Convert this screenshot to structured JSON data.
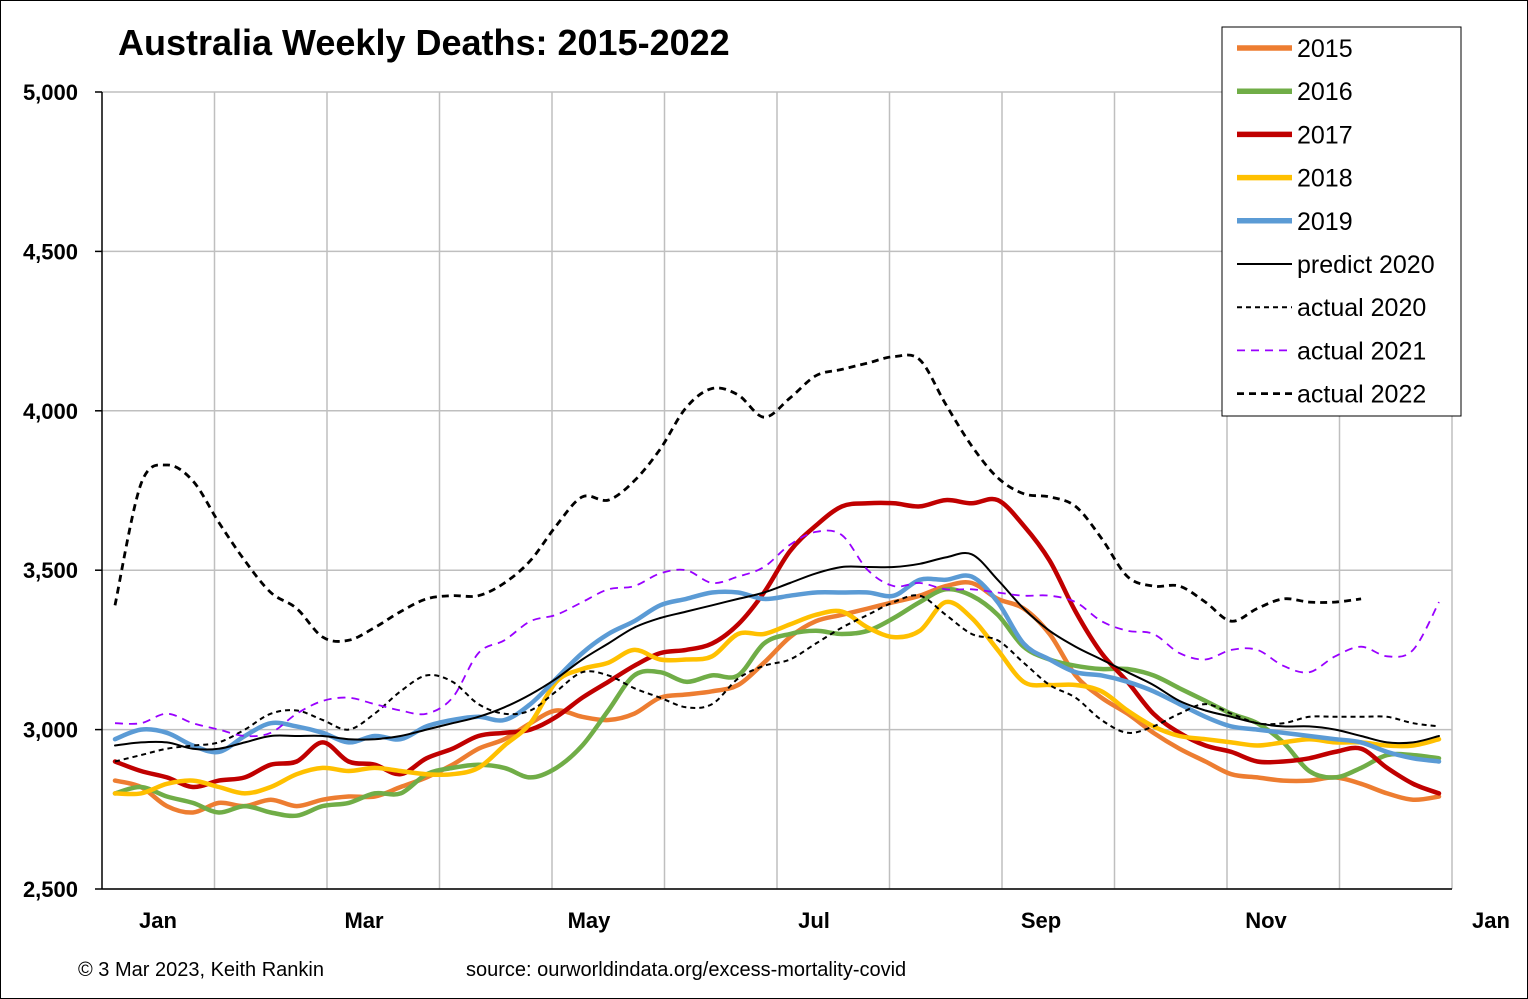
{
  "chart_data": {
    "type": "line",
    "title": "Australia Weekly Deaths: 2015-2022",
    "xlabel": "",
    "ylabel": "",
    "x_ticks": [
      "Jan",
      "Mar",
      "May",
      "Jul",
      "Sep",
      "Nov",
      "Jan"
    ],
    "y_ticks": [
      "2,500",
      "3,000",
      "3,500",
      "4,000",
      "4,500",
      "5,000"
    ],
    "ylim": [
      2500,
      5000
    ],
    "xlim": [
      0.5,
      52.5
    ],
    "grid": true,
    "legend_position": "top-right",
    "series": [
      {
        "name": "2015",
        "color": "#ED7D31",
        "style": "solid-thick",
        "x": [
          1,
          2,
          3,
          4,
          5,
          6,
          7,
          8,
          9,
          10,
          11,
          12,
          13,
          14,
          15,
          16,
          17,
          18,
          19,
          20,
          21,
          22,
          23,
          24,
          25,
          26,
          27,
          28,
          29,
          30,
          31,
          32,
          33,
          34,
          35,
          36,
          37,
          38,
          39,
          40,
          41,
          42,
          43,
          44,
          45,
          46,
          47,
          48,
          49,
          50,
          51,
          52
        ],
        "y": [
          2840,
          2820,
          2760,
          2740,
          2770,
          2760,
          2780,
          2760,
          2780,
          2790,
          2790,
          2820,
          2850,
          2890,
          2940,
          2970,
          3020,
          3060,
          3040,
          3030,
          3050,
          3100,
          3110,
          3120,
          3140,
          3210,
          3290,
          3340,
          3360,
          3380,
          3400,
          3420,
          3450,
          3460,
          3410,
          3380,
          3300,
          3170,
          3100,
          3050,
          2990,
          2940,
          2900,
          2860,
          2850,
          2840,
          2840,
          2850,
          2830,
          2800,
          2780,
          2790
        ]
      },
      {
        "name": "2016",
        "color": "#70AD47",
        "style": "solid-thick",
        "x": [
          1,
          2,
          3,
          4,
          5,
          6,
          7,
          8,
          9,
          10,
          11,
          12,
          13,
          14,
          15,
          16,
          17,
          18,
          19,
          20,
          21,
          22,
          23,
          24,
          25,
          26,
          27,
          28,
          29,
          30,
          31,
          32,
          33,
          34,
          35,
          36,
          37,
          38,
          39,
          40,
          41,
          42,
          43,
          44,
          45,
          46,
          47,
          48,
          49,
          50,
          51,
          52
        ],
        "y": [
          2800,
          2820,
          2790,
          2770,
          2740,
          2760,
          2740,
          2730,
          2760,
          2770,
          2800,
          2800,
          2860,
          2880,
          2890,
          2880,
          2850,
          2880,
          2950,
          3060,
          3170,
          3180,
          3150,
          3170,
          3170,
          3270,
          3300,
          3310,
          3300,
          3310,
          3350,
          3400,
          3440,
          3420,
          3360,
          3260,
          3220,
          3200,
          3190,
          3190,
          3170,
          3130,
          3090,
          3050,
          3020,
          2960,
          2870,
          2850,
          2880,
          2920,
          2920,
          2910
        ]
      },
      {
        "name": "2017",
        "color": "#C00000",
        "style": "solid-thick",
        "x": [
          1,
          2,
          3,
          4,
          5,
          6,
          7,
          8,
          9,
          10,
          11,
          12,
          13,
          14,
          15,
          16,
          17,
          18,
          19,
          20,
          21,
          22,
          23,
          24,
          25,
          26,
          27,
          28,
          29,
          30,
          31,
          32,
          33,
          34,
          35,
          36,
          37,
          38,
          39,
          40,
          41,
          42,
          43,
          44,
          45,
          46,
          47,
          48,
          49,
          50,
          51,
          52
        ],
        "y": [
          2900,
          2870,
          2850,
          2820,
          2840,
          2850,
          2890,
          2900,
          2960,
          2900,
          2890,
          2860,
          2910,
          2940,
          2980,
          2990,
          3000,
          3040,
          3100,
          3150,
          3200,
          3240,
          3250,
          3270,
          3330,
          3430,
          3560,
          3640,
          3700,
          3710,
          3710,
          3700,
          3720,
          3710,
          3720,
          3640,
          3530,
          3370,
          3240,
          3150,
          3050,
          2990,
          2950,
          2930,
          2900,
          2900,
          2910,
          2930,
          2940,
          2880,
          2830,
          2800
        ]
      },
      {
        "name": "2018",
        "color": "#FFC000",
        "style": "solid-thick",
        "x": [
          1,
          2,
          3,
          4,
          5,
          6,
          7,
          8,
          9,
          10,
          11,
          12,
          13,
          14,
          15,
          16,
          17,
          18,
          19,
          20,
          21,
          22,
          23,
          24,
          25,
          26,
          27,
          28,
          29,
          30,
          31,
          32,
          33,
          34,
          35,
          36,
          37,
          38,
          39,
          40,
          41,
          42,
          43,
          44,
          45,
          46,
          47,
          48,
          49,
          50,
          51,
          52
        ],
        "y": [
          2800,
          2800,
          2830,
          2840,
          2820,
          2800,
          2820,
          2860,
          2880,
          2870,
          2880,
          2870,
          2860,
          2860,
          2880,
          2950,
          3020,
          3150,
          3190,
          3210,
          3250,
          3220,
          3220,
          3230,
          3300,
          3300,
          3330,
          3360,
          3370,
          3320,
          3290,
          3310,
          3400,
          3350,
          3250,
          3150,
          3140,
          3140,
          3120,
          3060,
          3010,
          2980,
          2970,
          2960,
          2950,
          2960,
          2970,
          2960,
          2960,
          2950,
          2950,
          2970
        ]
      },
      {
        "name": "2019",
        "color": "#5B9BD5",
        "style": "solid-thick",
        "x": [
          1,
          2,
          3,
          4,
          5,
          6,
          7,
          8,
          9,
          10,
          11,
          12,
          13,
          14,
          15,
          16,
          17,
          18,
          19,
          20,
          21,
          22,
          23,
          24,
          25,
          26,
          27,
          28,
          29,
          30,
          31,
          32,
          33,
          34,
          35,
          36,
          37,
          38,
          39,
          40,
          41,
          42,
          43,
          44,
          45,
          46,
          47,
          48,
          49,
          50,
          51,
          52
        ],
        "y": [
          2970,
          3000,
          2990,
          2950,
          2930,
          2980,
          3020,
          3010,
          2990,
          2960,
          2980,
          2970,
          3010,
          3030,
          3040,
          3030,
          3080,
          3160,
          3240,
          3300,
          3340,
          3390,
          3410,
          3430,
          3430,
          3410,
          3420,
          3430,
          3430,
          3430,
          3420,
          3470,
          3470,
          3480,
          3400,
          3270,
          3220,
          3180,
          3170,
          3150,
          3120,
          3080,
          3040,
          3010,
          3000,
          2990,
          2980,
          2970,
          2960,
          2930,
          2910,
          2900
        ]
      },
      {
        "name": "predict 2020",
        "color": "#000000",
        "style": "solid-thin",
        "x": [
          1,
          2,
          3,
          4,
          5,
          6,
          7,
          8,
          9,
          10,
          11,
          12,
          13,
          14,
          15,
          16,
          17,
          18,
          19,
          20,
          21,
          22,
          23,
          24,
          25,
          26,
          27,
          28,
          29,
          30,
          31,
          32,
          33,
          34,
          35,
          36,
          37,
          38,
          39,
          40,
          41,
          42,
          43,
          44,
          45,
          46,
          47,
          48,
          49,
          50,
          51,
          52
        ],
        "y": [
          2950,
          2960,
          2960,
          2940,
          2940,
          2960,
          2980,
          2980,
          2980,
          2970,
          2970,
          2980,
          3000,
          3020,
          3040,
          3070,
          3110,
          3160,
          3220,
          3270,
          3320,
          3350,
          3370,
          3390,
          3410,
          3430,
          3460,
          3490,
          3510,
          3510,
          3510,
          3520,
          3540,
          3550,
          3470,
          3380,
          3310,
          3260,
          3220,
          3180,
          3140,
          3090,
          3060,
          3040,
          3020,
          3010,
          3010,
          3000,
          2980,
          2960,
          2960,
          2980
        ]
      },
      {
        "name": "actual 2020",
        "color": "#000000",
        "style": "dotted-thin",
        "x": [
          1,
          2,
          3,
          4,
          5,
          6,
          7,
          8,
          9,
          10,
          11,
          12,
          13,
          14,
          15,
          16,
          17,
          18,
          19,
          20,
          21,
          22,
          23,
          24,
          25,
          26,
          27,
          28,
          29,
          30,
          31,
          32,
          33,
          34,
          35,
          36,
          37,
          38,
          39,
          40,
          41,
          42,
          43,
          44,
          45,
          46,
          47,
          48,
          49,
          50,
          51,
          52
        ],
        "y": [
          2900,
          2920,
          2940,
          2950,
          2960,
          3000,
          3050,
          3060,
          3030,
          3000,
          3050,
          3120,
          3170,
          3150,
          3080,
          3050,
          3060,
          3120,
          3180,
          3170,
          3130,
          3100,
          3070,
          3080,
          3160,
          3200,
          3220,
          3270,
          3320,
          3360,
          3400,
          3420,
          3360,
          3300,
          3280,
          3210,
          3140,
          3100,
          3030,
          2990,
          3010,
          3050,
          3080,
          3050,
          3020,
          3020,
          3040,
          3040,
          3040,
          3040,
          3020,
          3010
        ]
      },
      {
        "name": "actual 2021",
        "color": "#9900FF",
        "style": "dashed-thin",
        "x": [
          1,
          2,
          3,
          4,
          5,
          6,
          7,
          8,
          9,
          10,
          11,
          12,
          13,
          14,
          15,
          16,
          17,
          18,
          19,
          20,
          21,
          22,
          23,
          24,
          25,
          26,
          27,
          28,
          29,
          30,
          31,
          32,
          33,
          34,
          35,
          36,
          37,
          38,
          39,
          40,
          41,
          42,
          43,
          44,
          45,
          46,
          47,
          48,
          49,
          50,
          51,
          52
        ],
        "y": [
          3020,
          3020,
          3050,
          3020,
          3000,
          2980,
          2990,
          3050,
          3090,
          3100,
          3080,
          3060,
          3050,
          3100,
          3240,
          3280,
          3340,
          3360,
          3400,
          3440,
          3450,
          3490,
          3500,
          3460,
          3480,
          3510,
          3580,
          3620,
          3610,
          3500,
          3450,
          3460,
          3440,
          3440,
          3430,
          3420,
          3420,
          3400,
          3340,
          3310,
          3300,
          3240,
          3220,
          3250,
          3250,
          3200,
          3180,
          3230,
          3260,
          3230,
          3250,
          3400
        ]
      },
      {
        "name": "actual 2022",
        "color": "#000000",
        "style": "dashed-thick",
        "x": [
          1,
          2,
          3,
          4,
          5,
          6,
          7,
          8,
          9,
          10,
          11,
          12,
          13,
          14,
          15,
          16,
          17,
          18,
          19,
          20,
          21,
          22,
          23,
          24,
          25,
          26,
          27,
          28,
          29,
          30,
          31,
          32,
          33,
          34,
          35,
          36,
          37,
          38,
          39,
          40,
          41,
          42,
          43,
          44,
          45,
          46,
          47,
          48,
          49
        ],
        "y": [
          3390,
          3770,
          3830,
          3780,
          3650,
          3530,
          3430,
          3380,
          3290,
          3280,
          3320,
          3370,
          3410,
          3420,
          3420,
          3460,
          3530,
          3640,
          3730,
          3720,
          3780,
          3880,
          4010,
          4070,
          4050,
          3980,
          4040,
          4110,
          4130,
          4150,
          4170,
          4160,
          4020,
          3890,
          3790,
          3740,
          3730,
          3700,
          3600,
          3480,
          3450,
          3450,
          3400,
          3340,
          3380,
          3410,
          3400,
          3400,
          3410
        ]
      }
    ]
  },
  "footer": {
    "copyright": "© 3 Mar 2023, Keith Rankin",
    "source": "source: ourworldindata.org/excess-mortality-covid"
  }
}
